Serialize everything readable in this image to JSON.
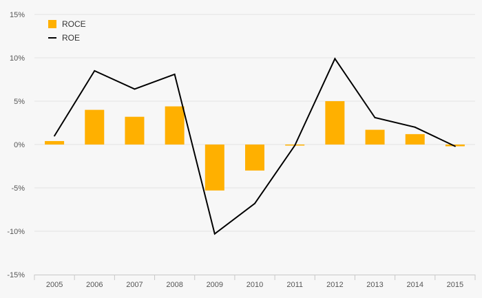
{
  "chart_data": {
    "type": "bar",
    "categories": [
      "2005",
      "2006",
      "2007",
      "2008",
      "2009",
      "2010",
      "2011",
      "2012",
      "2013",
      "2014",
      "2015"
    ],
    "series": [
      {
        "name": "ROCE",
        "type": "bar",
        "color": "#FFB000",
        "values": [
          0.4,
          4.0,
          3.2,
          4.4,
          -5.3,
          -3.0,
          -0.1,
          5.0,
          1.7,
          1.2,
          -0.2
        ]
      },
      {
        "name": "ROE",
        "type": "line",
        "color": "#000000",
        "values": [
          1.0,
          8.5,
          6.4,
          8.1,
          -10.3,
          -6.8,
          -0.1,
          9.9,
          3.1,
          2.0,
          -0.2
        ]
      }
    ],
    "y_ticks": [
      {
        "value": 15,
        "label": "15%"
      },
      {
        "value": 10,
        "label": "10%"
      },
      {
        "value": 5,
        "label": "5%"
      },
      {
        "value": 0,
        "label": "0%"
      },
      {
        "value": -5,
        "label": "-5%"
      },
      {
        "value": -10,
        "label": "-10%"
      },
      {
        "value": -15,
        "label": "-15%"
      }
    ],
    "ylim": [
      -15,
      15
    ],
    "grid": true,
    "legend_position": "top-left"
  }
}
